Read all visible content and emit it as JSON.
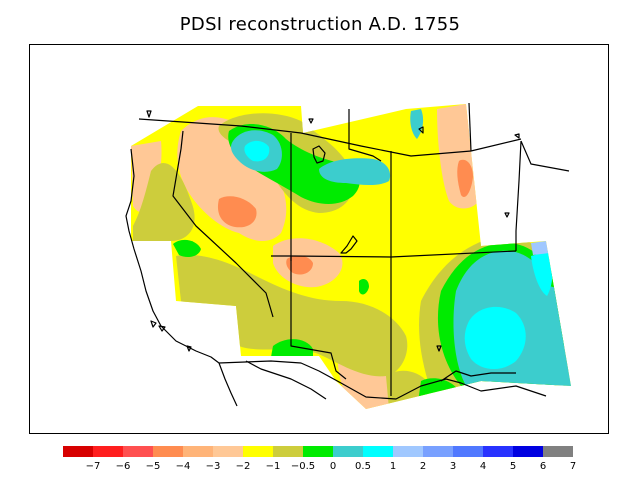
{
  "title": "PDSI reconstruction A.D. 1755",
  "colorbar": {
    "colors": [
      "#d70000",
      "#ff1e1e",
      "#ff5050",
      "#ff8c50",
      "#ffb478",
      "#ffc896",
      "#ffff00",
      "#cdcd3c",
      "#00eb00",
      "#3ccdcd",
      "#00ffff",
      "#a0c8ff",
      "#78a0ff",
      "#5078ff",
      "#2832ff",
      "#0000e1",
      "#808080"
    ],
    "tick_labels": [
      "−7",
      "−6",
      "−5",
      "−4",
      "−3",
      "−2",
      "−1",
      "−0.5",
      "0",
      "0.5",
      "1",
      "2",
      "3",
      "4",
      "5",
      "6",
      "7"
    ]
  }
}
